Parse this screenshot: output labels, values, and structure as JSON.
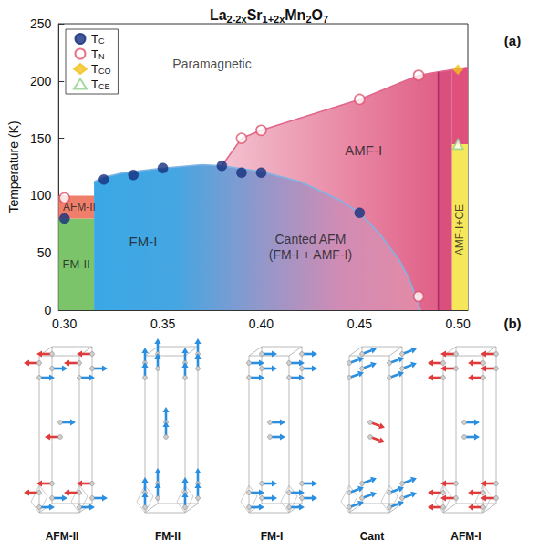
{
  "chart_data": {
    "type": "scatter",
    "title": "La2-2xSr1+2xMn2O7",
    "panel_label": "(a)",
    "y_label": "Temperature (K)",
    "xlim": [
      0.297,
      0.505
    ],
    "xticks": [
      {
        "value": 0.3,
        "label": "0.30"
      },
      0.35,
      {
        "value": 0.4,
        "label": "0.40"
      },
      0.45,
      {
        "value": 0.5,
        "label": "0.50"
      }
    ],
    "ylim": [
      0,
      250
    ],
    "yticks": [
      0,
      50,
      100,
      150,
      200,
      250
    ],
    "grid": false,
    "legend": "upper left",
    "series": [
      {
        "name": "TC",
        "color": "#16307e",
        "marker": "circle",
        "x": [
          0.3,
          0.32,
          0.335,
          0.35,
          0.38,
          0.39,
          0.4,
          0.45
        ],
        "values": [
          80,
          114,
          118,
          124,
          126,
          120,
          120,
          85
        ]
      },
      {
        "name": "TN",
        "color": "#e0506a",
        "marker": "open_circle",
        "x": [
          0.3,
          0.39,
          0.4,
          0.45,
          0.48,
          0.48
        ],
        "values": [
          98,
          150,
          157,
          184,
          205,
          12
        ]
      },
      {
        "name": "TCO",
        "color": "#f2c21e",
        "marker": "diamond",
        "x": [
          0.5
        ],
        "values": [
          210
        ]
      },
      {
        "name": "TCE",
        "color": "#8fcf8a",
        "marker": "open_triangle",
        "x": [
          0.5
        ],
        "values": [
          145
        ]
      }
    ],
    "boundaries": [
      {
        "color": "#7fb4e4",
        "x": [
          0.315,
          0.32,
          0.33,
          0.35,
          0.37,
          0.38,
          0.4,
          0.42,
          0.44,
          0.45,
          0.46,
          0.47,
          0.475,
          0.478,
          0.481
        ],
        "values": [
          112,
          116,
          120,
          124,
          127,
          126,
          121,
          112,
          96,
          85,
          67,
          44,
          28,
          14,
          0
        ]
      },
      {
        "color": "#e0668a",
        "x": [
          0.38,
          0.39,
          0.4,
          0.45,
          0.48,
          0.49,
          0.505
        ],
        "values": [
          126,
          150,
          157,
          184,
          205,
          208,
          212
        ]
      },
      {
        "color": "#b02a66",
        "x": [
          0.49,
          0.49
        ],
        "values": [
          0,
          208
        ]
      }
    ],
    "regions": [
      {
        "color": "#7cc46a",
        "points": [
          [
            0.297,
            0
          ],
          [
            0.315,
            0
          ],
          [
            0.315,
            80
          ],
          [
            0.297,
            80
          ]
        ]
      },
      {
        "color": "#ef7f6a",
        "points": [
          [
            0.297,
            80
          ],
          [
            0.315,
            80
          ],
          [
            0.315,
            100
          ],
          [
            0.297,
            100
          ]
        ]
      },
      {
        "color": [
          "#3aa8e6",
          "#45a6e2",
          "#8f98cc",
          "#d08cb4",
          "#e48aa6"
        ],
        "points": [
          [
            0.315,
            0
          ],
          [
            0.315,
            112
          ],
          [
            0.32,
            116
          ],
          [
            0.33,
            120
          ],
          [
            0.35,
            124
          ],
          [
            0.37,
            127
          ],
          [
            0.38,
            126
          ],
          [
            0.4,
            121
          ],
          [
            0.42,
            112
          ],
          [
            0.44,
            96
          ],
          [
            0.45,
            85
          ],
          [
            0.46,
            67
          ],
          [
            0.47,
            44
          ],
          [
            0.475,
            28
          ],
          [
            0.478,
            14
          ],
          [
            0.481,
            0
          ]
        ]
      },
      {
        "color": [
          "#f3c2d0",
          "#ea90aa",
          "#e06088"
        ],
        "points": [
          [
            0.38,
            126
          ],
          [
            0.39,
            150
          ],
          [
            0.4,
            157
          ],
          [
            0.45,
            184
          ],
          [
            0.48,
            205
          ],
          [
            0.49,
            208
          ],
          [
            0.49,
            0
          ],
          [
            0.481,
            0
          ],
          [
            0.478,
            14
          ],
          [
            0.475,
            28
          ],
          [
            0.47,
            44
          ],
          [
            0.46,
            67
          ],
          [
            0.45,
            85
          ],
          [
            0.44,
            96
          ],
          [
            0.42,
            112
          ],
          [
            0.4,
            121
          ],
          [
            0.38,
            126
          ]
        ]
      },
      {
        "color": "#d9507e",
        "points": [
          [
            0.49,
            0
          ],
          [
            0.497,
            0
          ],
          [
            0.497,
            210
          ],
          [
            0.49,
            208
          ]
        ]
      },
      {
        "color": "#f6e65a",
        "points": [
          [
            0.497,
            0
          ],
          [
            0.505,
            0
          ],
          [
            0.505,
            145
          ],
          [
            0.497,
            145
          ]
        ]
      },
      {
        "color": "#e0507c",
        "points": [
          [
            0.497,
            145
          ],
          [
            0.505,
            145
          ],
          [
            0.505,
            212
          ],
          [
            0.497,
            210
          ]
        ]
      }
    ],
    "annotations": [
      "Paramagnetic",
      "AFM-II",
      "FM-II",
      "FM-I",
      "Canted AFM\n(FM-I + AMF-I)",
      "AMF-I",
      "AMF-I+CE"
    ]
  },
  "diagram": {
    "label": "(b)",
    "structures": [
      "AFM-II",
      "FM-II",
      "FM-I",
      "Cant",
      "AFM-I"
    ]
  }
}
